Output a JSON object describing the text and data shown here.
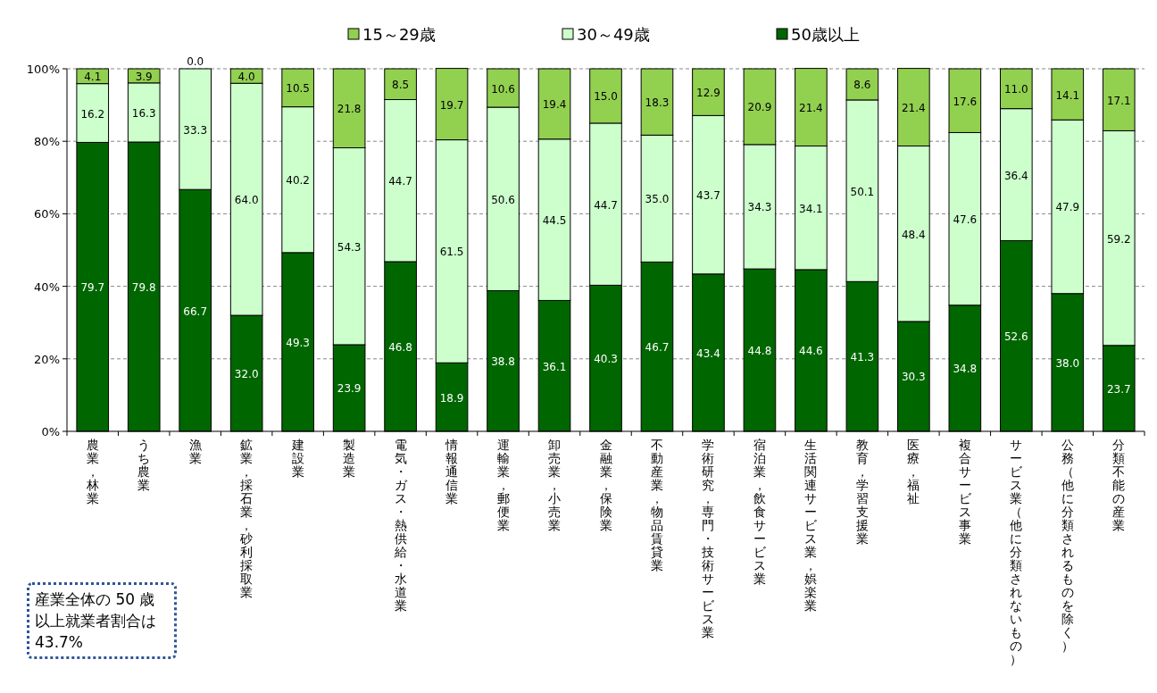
{
  "chart_data": {
    "type": "bar",
    "stacked": true,
    "categories": [
      "農業，林業",
      "うち農業",
      "漁業",
      "鉱業，採石業，砂利採取業",
      "建設業",
      "製造業",
      "電気・ガス・熱供給・水道業",
      "情報通信業",
      "運輸業，郵便業",
      "卸売業，小売業",
      "金融業，保険業",
      "不動産業，物品賃貸業",
      "学術研究，専門・技術サービス業",
      "宿泊業，飲食サービス業",
      "生活関連サービス業，娯楽業",
      "教育，学習支援業",
      "医療，福祉",
      "複合サービス事業",
      "サービス業（他に分類されないもの）",
      "公務（他に分類されるものを除く）",
      "分類不能の産業"
    ],
    "series": [
      {
        "name": "50歳以上",
        "color": "#006600",
        "values": [
          79.7,
          79.8,
          66.7,
          32.0,
          49.3,
          23.9,
          46.8,
          18.9,
          38.8,
          36.1,
          40.3,
          46.7,
          43.4,
          44.8,
          44.6,
          41.3,
          30.3,
          34.8,
          52.6,
          38.0,
          23.7
        ],
        "value_labels": [
          "79.7",
          "79.8",
          "66.7",
          "32.0",
          "49.3",
          "23.9",
          "46.8",
          "18.9",
          "38.8",
          "36.1",
          "40.3",
          "46.7",
          "43.4",
          "44.8",
          "44.6",
          "41.3",
          "30.3",
          "34.8",
          "52.6",
          "38.0",
          "23.7"
        ]
      },
      {
        "name": "30～49歳",
        "color": "#ccffcc",
        "values": [
          16.2,
          16.3,
          33.3,
          64.0,
          40.2,
          54.3,
          44.7,
          61.5,
          50.6,
          44.5,
          44.7,
          35.0,
          43.7,
          34.3,
          34.1,
          50.1,
          48.4,
          47.6,
          36.4,
          47.9,
          59.2
        ],
        "value_labels": [
          "16.2",
          "16.3",
          "33.3",
          "64.0",
          "40.2",
          "54.3",
          "44.7",
          "61.5",
          "50.6",
          "44.5",
          "44.7",
          "35.0",
          "43.7",
          "34.3",
          "34.1",
          "50.1",
          "48.4",
          "47.6",
          "36.4",
          "47.9",
          "59.2"
        ]
      },
      {
        "name": "15～29歳",
        "color": "#92d050",
        "values": [
          4.1,
          3.9,
          0.0,
          4.0,
          10.5,
          21.8,
          8.5,
          19.7,
          10.6,
          19.4,
          15.0,
          18.3,
          12.9,
          20.9,
          21.4,
          8.6,
          21.4,
          17.6,
          11.0,
          14.1,
          17.1
        ],
        "value_labels": [
          "4.1",
          "3.9",
          "0.0",
          "4.0",
          "10.5",
          "21.8",
          "8.5",
          "19.7",
          "10.6",
          "19.4",
          "15.0",
          "18.3",
          "12.9",
          "20.9",
          "21.4",
          "8.6",
          "21.4",
          "17.6",
          "11.0",
          "14.1",
          "17.1"
        ]
      }
    ],
    "ylim": [
      0,
      100
    ],
    "yticks": [
      {
        "value": 0,
        "label": "0%"
      },
      {
        "value": 20,
        "label": "20%"
      },
      {
        "value": 40,
        "label": "40%"
      },
      {
        "value": 60,
        "label": "60%"
      },
      {
        "value": 80,
        "label": "80%"
      },
      {
        "value": 100,
        "label": "100%"
      }
    ],
    "grid": "y",
    "legend": "top",
    "annotations": [
      "産業全体の 50 歳以上就業者割合は 43.7%"
    ]
  }
}
